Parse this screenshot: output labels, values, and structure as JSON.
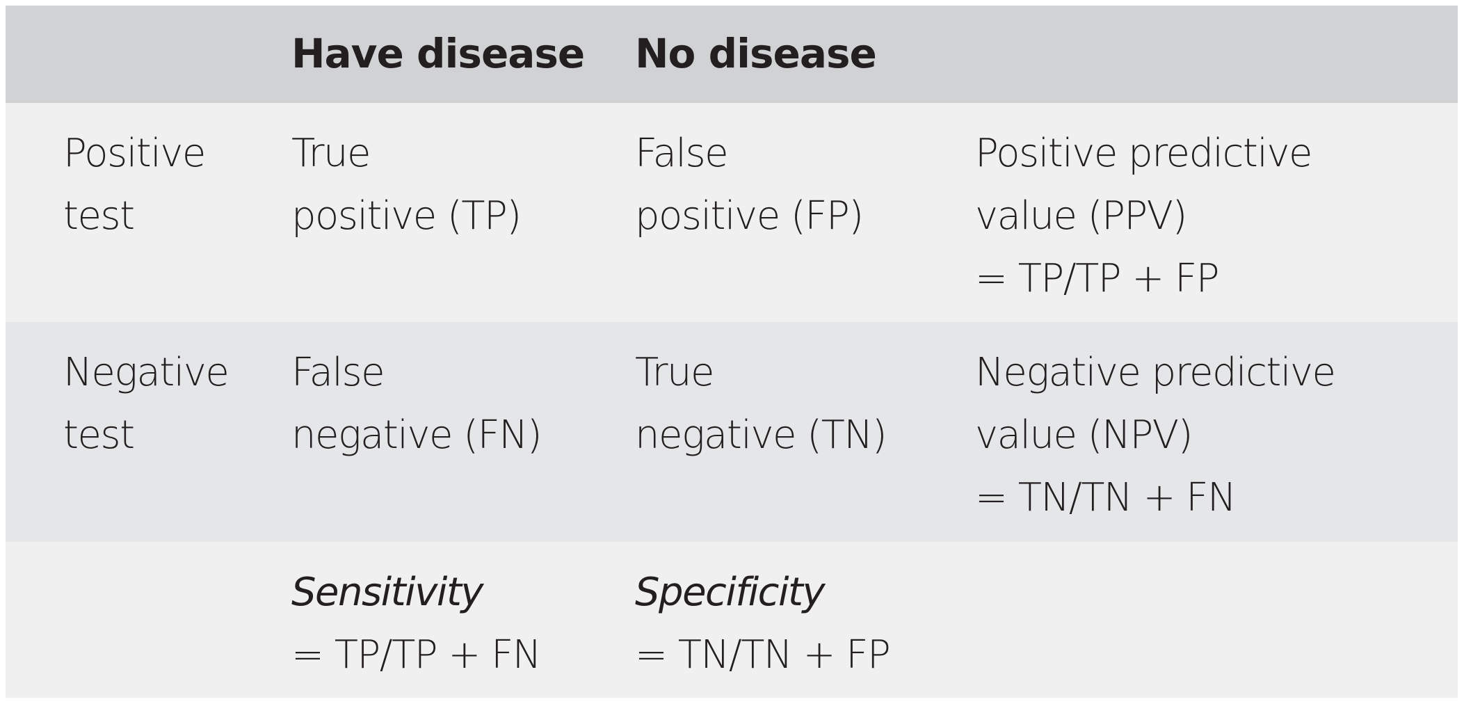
{
  "table": {
    "header": [
      "",
      "Have disease",
      "No disease",
      ""
    ],
    "rows": [
      {
        "label": [
          "Positive",
          "test"
        ],
        "have_disease": [
          "True",
          "positive (TP)"
        ],
        "no_disease": [
          "False",
          "positive (FP)"
        ],
        "predictive_value": [
          "Positive predictive",
          "value (PPV)",
          "= TP/TP + FP"
        ]
      },
      {
        "label": [
          "Negative",
          "test"
        ],
        "have_disease": [
          "False",
          "negative (FN)"
        ],
        "no_disease": [
          "True",
          "negative (TN)"
        ],
        "predictive_value": [
          "Negative predictive",
          "value (NPV)",
          "= TN/TN + FN"
        ]
      },
      {
        "label": [],
        "have_disease": [
          "Sensitivity",
          "= TP/TP + FN"
        ],
        "no_disease": [
          "Specificity",
          "= TN/TN + FP"
        ],
        "predictive_value": []
      }
    ]
  },
  "colors": {
    "header_bg": "#d1d2d4",
    "row_light_bg": "#f0f0f0",
    "row_dark_bg": "#e5e6e8",
    "text": "#231f20"
  }
}
